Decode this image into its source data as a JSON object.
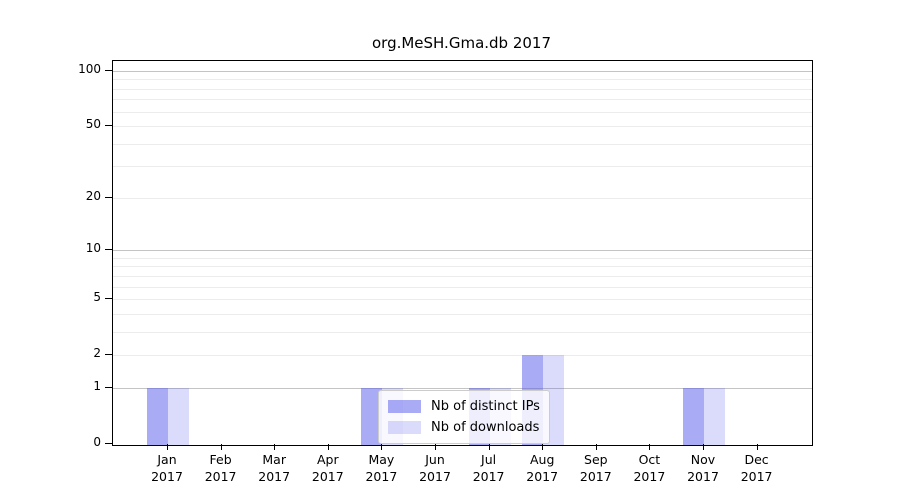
{
  "page": {
    "background": "#ffffff"
  },
  "chart_data": {
    "type": "bar",
    "title": "org.MeSH.Gma.db 2017",
    "xlabel": "",
    "ylabel": "",
    "categories": [
      "Jan",
      "Feb",
      "Mar",
      "Apr",
      "May",
      "Jun",
      "Jul",
      "Aug",
      "Sep",
      "Oct",
      "Nov",
      "Dec"
    ],
    "x_tick_year": "2017",
    "series": [
      {
        "name": "Nb of distinct IPs",
        "color": "rgba(85,88,235,0.50)",
        "color_hex": "#aaabf5",
        "values": [
          1,
          0,
          0,
          0,
          1,
          0,
          1,
          2,
          0,
          0,
          1,
          0
        ]
      },
      {
        "name": "Nb of downloads",
        "color": "rgba(85,88,235,0.21)",
        "color_hex": "#dbdcf8",
        "values": [
          1,
          0,
          0,
          0,
          1,
          0,
          1,
          2,
          0,
          0,
          1,
          0
        ]
      }
    ],
    "yscale": "log1p",
    "ylim": [
      0,
      115
    ],
    "yticks": [
      0,
      1,
      2,
      5,
      10,
      20,
      50,
      100
    ],
    "major_gridlines": [
      1,
      10,
      100
    ],
    "minor_gridlines": [
      2,
      3,
      4,
      5,
      6,
      7,
      8,
      9,
      20,
      30,
      40,
      50,
      60,
      70,
      80,
      90
    ],
    "grid": "horizontal",
    "legend_position": "inside lower center",
    "bar_layout": "pair of bars centered on each month tick",
    "axis_color": "#000000",
    "major_grid_color": "#c4c4c4",
    "minor_grid_color": "#ececec"
  }
}
